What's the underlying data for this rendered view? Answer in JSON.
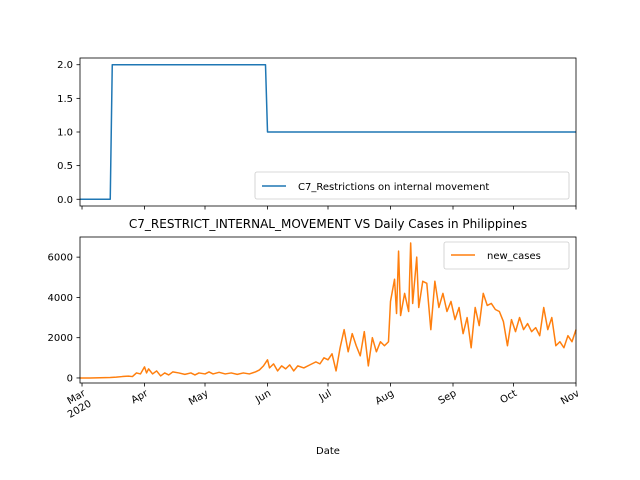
{
  "chart_data": [
    {
      "type": "line",
      "title": "",
      "xlabel": "",
      "ylabel": "",
      "ylim": [
        -0.1,
        2.1
      ],
      "yticks": [
        0.0,
        0.5,
        1.0,
        1.5,
        2.0
      ],
      "ytick_labels": [
        "0.0",
        "0.5",
        "1.0",
        "1.5",
        "2.0"
      ],
      "grid": false,
      "legend_position": "lower-right",
      "series": [
        {
          "name": "C7_Restrictions on internal movement",
          "color": "#1f77b4",
          "points": [
            [
              "2020-02-29",
              0
            ],
            [
              "2020-03-15",
              0
            ],
            [
              "2020-03-16",
              2
            ],
            [
              "2020-05-31",
              2
            ],
            [
              "2020-06-01",
              1
            ],
            [
              "2020-11-01",
              1
            ]
          ]
        }
      ]
    },
    {
      "type": "line",
      "title": "C7_RESTRICT_INTERNAL_MOVEMENT VS Daily Cases in Philippines",
      "xlabel": "Date",
      "ylabel": "",
      "xlim": [
        "2020-02-29",
        "2020-11-01"
      ],
      "ylim": [
        -250,
        7000
      ],
      "yticks": [
        0,
        2000,
        4000,
        6000
      ],
      "ytick_labels": [
        "0",
        "2000",
        "4000",
        "6000"
      ],
      "xticks": [
        "2020-03-01",
        "2020-04-01",
        "2020-05-01",
        "2020-06-01",
        "2020-07-01",
        "2020-08-01",
        "2020-09-01",
        "2020-10-01",
        "2020-11-01"
      ],
      "xtick_labels": [
        "Mar\n2020",
        "Apr",
        "May",
        "Jun",
        "Jul",
        "Aug",
        "Sep",
        "Oct",
        "Nov"
      ],
      "grid": false,
      "legend_position": "top-right",
      "series": [
        {
          "name": "new_cases",
          "color": "#ff7f0e",
          "points": [
            [
              "2020-02-29",
              0
            ],
            [
              "2020-03-05",
              0
            ],
            [
              "2020-03-10",
              10
            ],
            [
              "2020-03-15",
              20
            ],
            [
              "2020-03-18",
              40
            ],
            [
              "2020-03-21",
              70
            ],
            [
              "2020-03-24",
              90
            ],
            [
              "2020-03-26",
              70
            ],
            [
              "2020-03-28",
              250
            ],
            [
              "2020-03-30",
              200
            ],
            [
              "2020-04-01",
              550
            ],
            [
              "2020-04-02",
              250
            ],
            [
              "2020-04-03",
              450
            ],
            [
              "2020-04-05",
              200
            ],
            [
              "2020-04-07",
              350
            ],
            [
              "2020-04-09",
              100
            ],
            [
              "2020-04-11",
              250
            ],
            [
              "2020-04-13",
              150
            ],
            [
              "2020-04-15",
              300
            ],
            [
              "2020-04-18",
              250
            ],
            [
              "2020-04-21",
              180
            ],
            [
              "2020-04-24",
              250
            ],
            [
              "2020-04-26",
              150
            ],
            [
              "2020-04-28",
              250
            ],
            [
              "2020-05-01",
              200
            ],
            [
              "2020-05-03",
              300
            ],
            [
              "2020-05-05",
              200
            ],
            [
              "2020-05-08",
              280
            ],
            [
              "2020-05-11",
              200
            ],
            [
              "2020-05-14",
              250
            ],
            [
              "2020-05-17",
              180
            ],
            [
              "2020-05-20",
              250
            ],
            [
              "2020-05-23",
              200
            ],
            [
              "2020-05-26",
              300
            ],
            [
              "2020-05-28",
              400
            ],
            [
              "2020-05-30",
              600
            ],
            [
              "2020-06-01",
              900
            ],
            [
              "2020-06-02",
              500
            ],
            [
              "2020-06-04",
              700
            ],
            [
              "2020-06-06",
              350
            ],
            [
              "2020-06-08",
              600
            ],
            [
              "2020-06-10",
              450
            ],
            [
              "2020-06-12",
              650
            ],
            [
              "2020-06-14",
              350
            ],
            [
              "2020-06-16",
              600
            ],
            [
              "2020-06-19",
              500
            ],
            [
              "2020-06-22",
              650
            ],
            [
              "2020-06-25",
              800
            ],
            [
              "2020-06-27",
              700
            ],
            [
              "2020-06-29",
              1000
            ],
            [
              "2020-07-01",
              900
            ],
            [
              "2020-07-03",
              1200
            ],
            [
              "2020-07-05",
              350
            ],
            [
              "2020-07-07",
              1500
            ],
            [
              "2020-07-09",
              2400
            ],
            [
              "2020-07-11",
              1300
            ],
            [
              "2020-07-13",
              2200
            ],
            [
              "2020-07-15",
              1600
            ],
            [
              "2020-07-17",
              1100
            ],
            [
              "2020-07-19",
              2300
            ],
            [
              "2020-07-21",
              600
            ],
            [
              "2020-07-23",
              2000
            ],
            [
              "2020-07-25",
              1300
            ],
            [
              "2020-07-27",
              1800
            ],
            [
              "2020-07-29",
              1600
            ],
            [
              "2020-07-31",
              1800
            ],
            [
              "2020-08-01",
              3800
            ],
            [
              "2020-08-03",
              4900
            ],
            [
              "2020-08-04",
              3200
            ],
            [
              "2020-08-05",
              6300
            ],
            [
              "2020-08-06",
              3100
            ],
            [
              "2020-08-08",
              4200
            ],
            [
              "2020-08-10",
              3300
            ],
            [
              "2020-08-11",
              6700
            ],
            [
              "2020-08-12",
              3700
            ],
            [
              "2020-08-14",
              6000
            ],
            [
              "2020-08-15",
              3500
            ],
            [
              "2020-08-17",
              4800
            ],
            [
              "2020-08-19",
              4700
            ],
            [
              "2020-08-21",
              2400
            ],
            [
              "2020-08-23",
              4800
            ],
            [
              "2020-08-25",
              3500
            ],
            [
              "2020-08-27",
              4200
            ],
            [
              "2020-08-29",
              3300
            ],
            [
              "2020-08-31",
              3800
            ],
            [
              "2020-09-02",
              2900
            ],
            [
              "2020-09-04",
              3500
            ],
            [
              "2020-09-06",
              2200
            ],
            [
              "2020-09-08",
              3000
            ],
            [
              "2020-09-10",
              1500
            ],
            [
              "2020-09-12",
              3500
            ],
            [
              "2020-09-14",
              2600
            ],
            [
              "2020-09-16",
              4200
            ],
            [
              "2020-09-18",
              3600
            ],
            [
              "2020-09-20",
              3700
            ],
            [
              "2020-09-22",
              3400
            ],
            [
              "2020-09-24",
              3300
            ],
            [
              "2020-09-26",
              2800
            ],
            [
              "2020-09-28",
              1600
            ],
            [
              "2020-09-30",
              2900
            ],
            [
              "2020-10-02",
              2300
            ],
            [
              "2020-10-04",
              3000
            ],
            [
              "2020-10-06",
              2400
            ],
            [
              "2020-10-08",
              2700
            ],
            [
              "2020-10-10",
              2300
            ],
            [
              "2020-10-12",
              2500
            ],
            [
              "2020-10-14",
              2100
            ],
            [
              "2020-10-16",
              3500
            ],
            [
              "2020-10-18",
              2400
            ],
            [
              "2020-10-20",
              3000
            ],
            [
              "2020-10-22",
              1600
            ],
            [
              "2020-10-24",
              1800
            ],
            [
              "2020-10-26",
              1500
            ],
            [
              "2020-10-28",
              2100
            ],
            [
              "2020-10-30",
              1800
            ],
            [
              "2020-11-01",
              2400
            ]
          ]
        }
      ]
    }
  ]
}
